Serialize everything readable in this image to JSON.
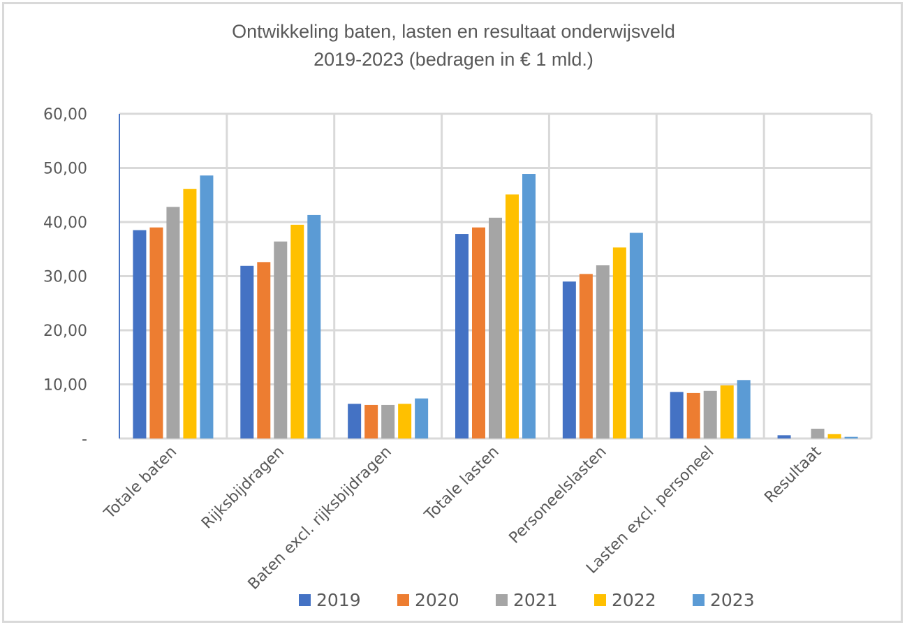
{
  "chart_data": {
    "type": "bar",
    "title": "Ontwikkeling baten, lasten en resultaat onderwijsveld 2019-2023 (bedragen in € 1 mld.)",
    "title_lines": [
      "Ontwikkeling baten, lasten en resultaat onderwijsveld",
      "2019-2023 (bedragen in € 1 mld.)"
    ],
    "xlabel": "",
    "ylabel": "",
    "ylim": [
      0,
      60
    ],
    "yticks": [
      0,
      10,
      20,
      30,
      40,
      50,
      60
    ],
    "ytick_labels": [
      "-",
      "10,00",
      "20,00",
      "30,00",
      "40,00",
      "50,00",
      "60,00"
    ],
    "grid": "both",
    "legend_position": "bottom",
    "categories": [
      "Totale baten",
      "Rijksbijdragen",
      "Baten excl. rijksbijdragen",
      "Totale lasten",
      "Personeelslasten",
      "Lasten excl. personeel",
      "Resultaat"
    ],
    "series": [
      {
        "name": "2019",
        "color": "#4472c4",
        "values": [
          38.5,
          31.9,
          6.4,
          37.8,
          29.0,
          8.6,
          0.6
        ]
      },
      {
        "name": "2020",
        "color": "#ed7d31",
        "values": [
          39.0,
          32.6,
          6.2,
          39.0,
          30.4,
          8.4,
          0.0
        ]
      },
      {
        "name": "2021",
        "color": "#a5a5a5",
        "values": [
          42.8,
          36.4,
          6.2,
          40.8,
          32.0,
          8.8,
          1.8
        ]
      },
      {
        "name": "2022",
        "color": "#ffc000",
        "values": [
          46.1,
          39.5,
          6.4,
          45.1,
          35.3,
          9.8,
          0.8
        ]
      },
      {
        "name": "2023",
        "color": "#5b9bd5",
        "values": [
          48.6,
          41.3,
          7.4,
          48.9,
          38.0,
          10.8,
          0.3
        ]
      }
    ],
    "colors": {
      "gridline": "#d9d9d9",
      "axis": "#4472c4",
      "text": "#595959",
      "border": "#d9d9d9"
    }
  }
}
